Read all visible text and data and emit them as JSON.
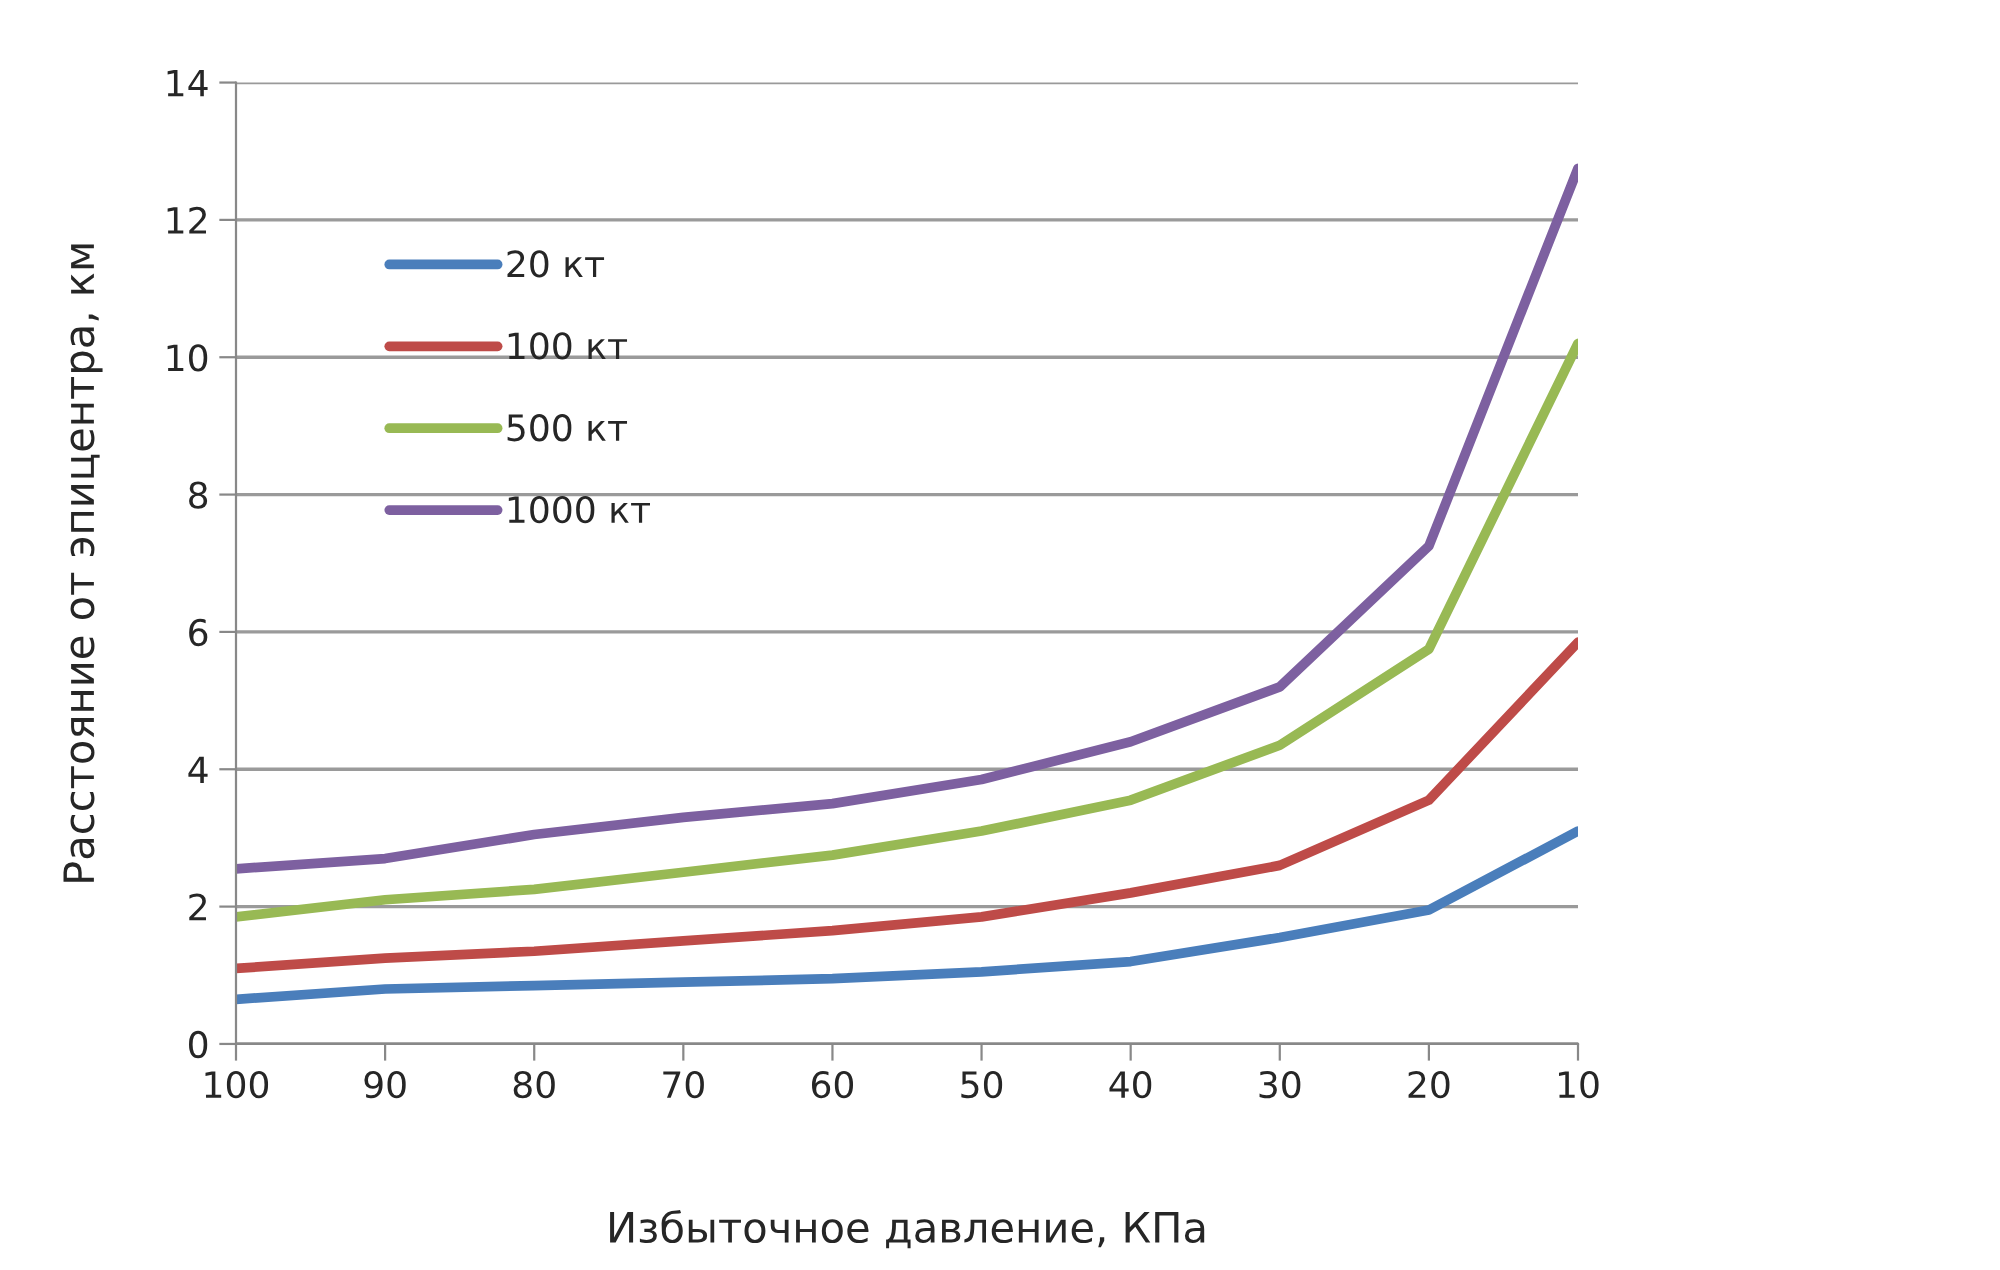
{
  "chart_data": {
    "type": "line",
    "xlabel": "Избыточное давление, КПа",
    "ylabel": "Расстояние от эпицентра, км",
    "categories": [
      "100",
      "90",
      "80",
      "70",
      "60",
      "50",
      "40",
      "30",
      "20",
      "10"
    ],
    "series": [
      {
        "name": "20 кт",
        "color": "#4a7ebb",
        "values": [
          0.65,
          0.8,
          0.85,
          0.9,
          0.95,
          1.05,
          1.2,
          1.55,
          1.95,
          3.1
        ]
      },
      {
        "name": "100 кт",
        "color": "#be4b48",
        "values": [
          1.1,
          1.25,
          1.35,
          1.5,
          1.65,
          1.85,
          2.2,
          2.6,
          3.55,
          5.85
        ]
      },
      {
        "name": "500 кт",
        "color": "#98b954",
        "values": [
          1.85,
          2.1,
          2.25,
          2.5,
          2.75,
          3.1,
          3.55,
          4.35,
          5.75,
          10.2
        ]
      },
      {
        "name": "1000 кт",
        "color": "#7d60a0",
        "values": [
          2.55,
          2.7,
          3.05,
          3.3,
          3.5,
          3.85,
          4.4,
          5.2,
          7.25,
          12.75
        ]
      }
    ],
    "ylim": [
      0,
      14
    ],
    "yticks": [
      0,
      2,
      4,
      6,
      8,
      10,
      12,
      14
    ],
    "grid": "y",
    "legend": "top left",
    "marker": "none",
    "line_style": "solid"
  }
}
